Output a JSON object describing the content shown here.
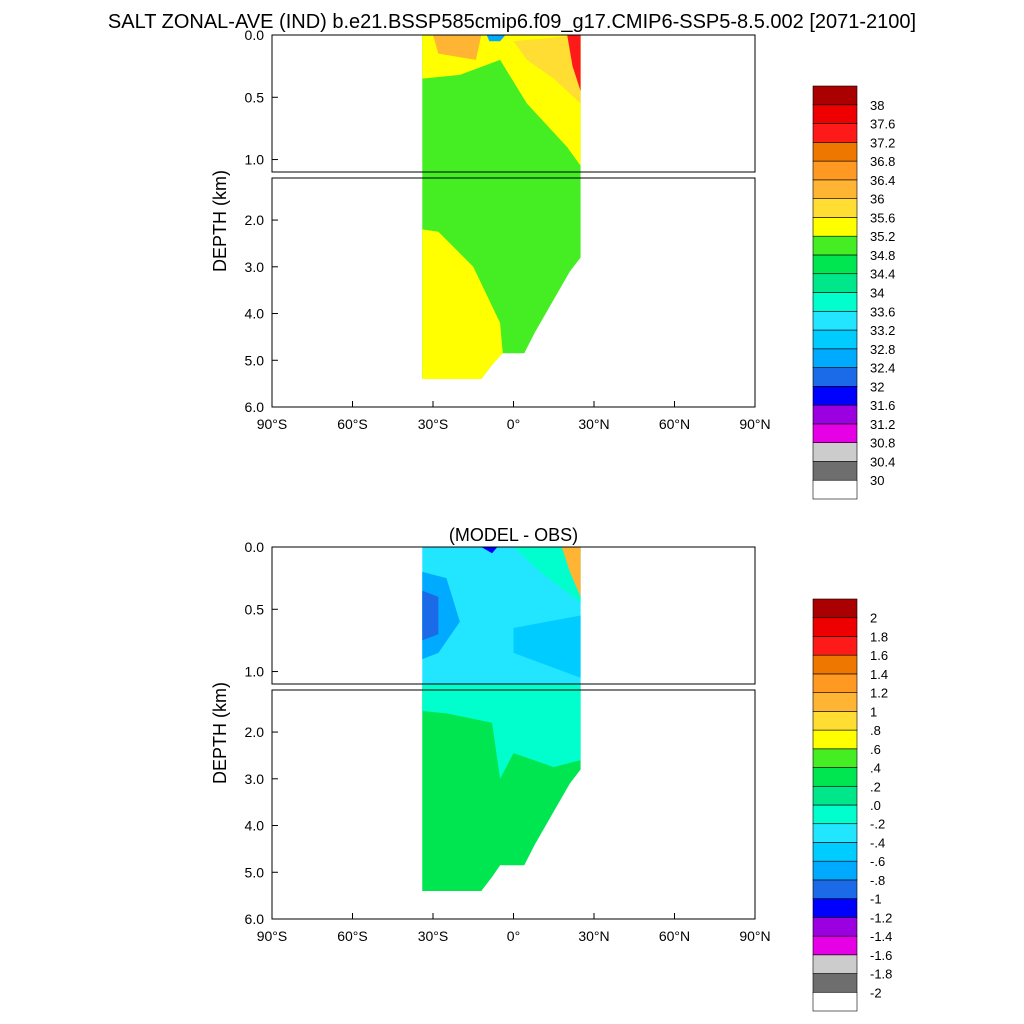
{
  "page_title": "SALT ZONAL-AVE (IND) b.e21.BSSP585cmip6.f09_g17.CMIP6-SSP5-8.5.002 [2071-2100]",
  "chart_data": [
    {
      "type": "heatmap",
      "title": "",
      "ylabel": "DEPTH (km)",
      "x_ticks": [
        "90°S",
        "60°S",
        "30°S",
        "0°",
        "30°N",
        "60°N",
        "90°N"
      ],
      "y_ticks": [
        "0.0",
        "0.5",
        "1.0",
        "2.0",
        "3.0",
        "4.0",
        "5.0",
        "6.0"
      ],
      "xlim": [
        -90,
        90
      ],
      "ylim": [
        0,
        6
      ],
      "ocean_lat_range": [
        -34,
        25
      ],
      "colorbar_labels": [
        "38",
        "37.6",
        "37.2",
        "36.8",
        "36.4",
        "36",
        "35.6",
        "35.2",
        "34.8",
        "34.4",
        "34",
        "33.6",
        "33.2",
        "32.8",
        "32.4",
        "32",
        "31.6",
        "31.2",
        "30.8",
        "30.4",
        "30"
      ],
      "colorbar_colors": [
        "#ffffff",
        "#6e6e6e",
        "#cccccc",
        "#e600e6",
        "#9a00e0",
        "#0000ff",
        "#1b6be8",
        "#00aaff",
        "#00ccff",
        "#22e6ff",
        "#00ffcc",
        "#00e68a",
        "#00e650",
        "#44ee22",
        "#ffff00",
        "#ffdd33",
        "#ffb433",
        "#ff9922",
        "#ee7700",
        "#ff1a1a",
        "#ee0000",
        "#aa0000"
      ]
    },
    {
      "type": "heatmap",
      "title": "(MODEL - OBS)",
      "ylabel": "DEPTH (km)",
      "x_ticks": [
        "90°S",
        "60°S",
        "30°S",
        "0°",
        "30°N",
        "60°N",
        "90°N"
      ],
      "y_ticks": [
        "0.0",
        "0.5",
        "1.0",
        "2.0",
        "3.0",
        "4.0",
        "5.0",
        "6.0"
      ],
      "xlim": [
        -90,
        90
      ],
      "ylim": [
        0,
        6
      ],
      "ocean_lat_range": [
        -34,
        25
      ],
      "colorbar_labels": [
        "2",
        "1.8",
        "1.6",
        "1.4",
        "1.2",
        "1",
        ".8",
        ".6",
        ".4",
        ".2",
        ".0",
        "-.2",
        "-.4",
        "-.6",
        "-.8",
        "-1",
        "-1.2",
        "-1.4",
        "-1.6",
        "-1.8",
        "-2"
      ],
      "colorbar_colors": [
        "#ffffff",
        "#6e6e6e",
        "#cccccc",
        "#e600e6",
        "#9a00e0",
        "#0000ff",
        "#1b6be8",
        "#00aaff",
        "#00ccff",
        "#22e6ff",
        "#00ffcc",
        "#00e68a",
        "#00e650",
        "#44ee22",
        "#ffff00",
        "#ffdd33",
        "#ffb433",
        "#ff9922",
        "#ee7700",
        "#ff1a1a",
        "#ee0000",
        "#aa0000"
      ]
    }
  ]
}
